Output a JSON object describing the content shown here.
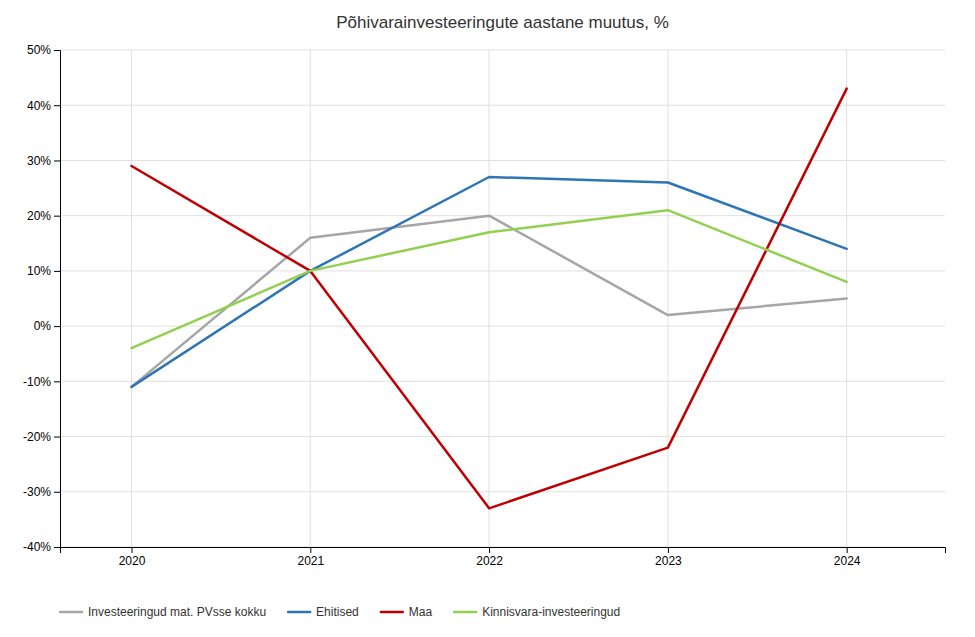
{
  "chart_data": {
    "type": "line",
    "title": "Põhivarainvesteeringute aastane muutus, %",
    "x": [
      2020,
      2021,
      2022,
      2023,
      2024
    ],
    "series": [
      {
        "name": "Investeeringud mat. PVsse kokku",
        "color": "#a6a6a6",
        "values": [
          -11,
          16,
          20,
          2,
          5
        ]
      },
      {
        "name": "Ehitised",
        "color": "#2e75b6",
        "values": [
          -11,
          10,
          27,
          26,
          14
        ]
      },
      {
        "name": "Maa",
        "color": "#c00000",
        "values": [
          29,
          10,
          -33,
          -22,
          43
        ]
      },
      {
        "name": "Kinnisvara-investeeringud",
        "color": "#92d050",
        "values": [
          -4,
          10,
          17,
          21,
          8
        ]
      }
    ],
    "xlim": [
      2019.6,
      2024.55
    ],
    "xticks": [
      2020,
      2021,
      2022,
      2023,
      2024
    ],
    "ylim": [
      -40,
      50
    ],
    "yticks": [
      {
        "value": -40,
        "label": "-40%"
      },
      {
        "value": -30,
        "label": "-30%"
      },
      {
        "value": -20,
        "label": "-20%"
      },
      {
        "value": -10,
        "label": "-10%"
      },
      {
        "value": 0,
        "label": "0%"
      },
      {
        "value": 10,
        "label": "10%"
      },
      {
        "value": 20,
        "label": "20%"
      },
      {
        "value": 30,
        "label": "30%"
      },
      {
        "value": 40,
        "label": "40%"
      },
      {
        "value": 50,
        "label": "50%"
      }
    ],
    "grid": true,
    "legend": "lower left"
  }
}
